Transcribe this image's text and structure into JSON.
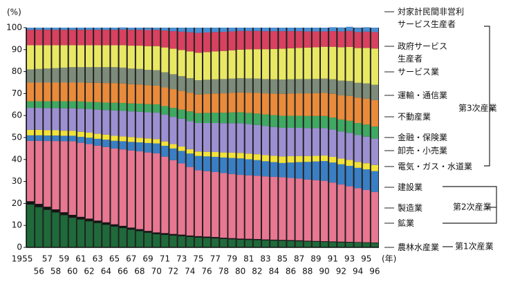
{
  "chart_data": {
    "type": "stacked-bar",
    "y_unit": "(%)",
    "x_unit": "(年)",
    "categories": [
      "1955",
      "56",
      "57",
      "58",
      "59",
      "60",
      "61",
      "62",
      "63",
      "64",
      "65",
      "66",
      "67",
      "68",
      "69",
      "70",
      "71",
      "72",
      "73",
      "74",
      "75",
      "76",
      "77",
      "78",
      "79",
      "80",
      "81",
      "82",
      "83",
      "84",
      "85",
      "86",
      "87",
      "88",
      "89",
      "90",
      "91",
      "92",
      "93",
      "94",
      "95",
      "96"
    ],
    "ylim": [
      0,
      100
    ],
    "yticks": [
      0,
      10,
      20,
      30,
      40,
      50,
      60,
      70,
      80,
      90,
      100
    ],
    "series": [
      {
        "name": "農林水産業",
        "color": "#1f6a3a",
        "values": [
          19.5,
          18.3,
          17.1,
          15.9,
          14.7,
          13.5,
          12.7,
          11.9,
          11.1,
          10.3,
          9.5,
          8.8,
          8.1,
          7.4,
          6.7,
          6.0,
          5.7,
          5.4,
          5.1,
          4.8,
          4.5,
          4.3,
          4.1,
          3.9,
          3.7,
          3.5,
          3.4,
          3.3,
          3.2,
          3.1,
          3.0,
          2.9,
          2.8,
          2.7,
          2.6,
          2.5,
          2.4,
          2.3,
          2.2,
          2.2,
          2.1,
          2.0
        ]
      },
      {
        "name": "鉱業",
        "color": "#151515",
        "values": [
          1.5,
          1.5,
          1.4,
          1.4,
          1.3,
          1.3,
          1.2,
          1.2,
          1.1,
          1.1,
          1.0,
          1.0,
          0.9,
          0.9,
          0.8,
          0.8,
          0.8,
          0.7,
          0.7,
          0.6,
          0.6,
          0.6,
          0.6,
          0.5,
          0.5,
          0.5,
          0.5,
          0.5,
          0.4,
          0.4,
          0.4,
          0.4,
          0.4,
          0.3,
          0.3,
          0.3,
          0.3,
          0.3,
          0.3,
          0.2,
          0.2,
          0.2
        ]
      },
      {
        "name": "製造業",
        "color": "#e87791",
        "values": [
          27.5,
          28.7,
          29.9,
          31.1,
          32.3,
          33.5,
          33.7,
          33.9,
          34.1,
          34.3,
          34.5,
          34.8,
          35.1,
          35.4,
          35.7,
          36.0,
          34.8,
          33.6,
          32.4,
          31.2,
          30.0,
          29.8,
          29.6,
          29.4,
          29.2,
          29.0,
          28.9,
          28.8,
          28.7,
          28.6,
          28.5,
          28.3,
          28.1,
          27.9,
          27.7,
          27.5,
          26.8,
          26.0,
          25.3,
          24.5,
          23.8,
          23.0
        ]
      },
      {
        "name": "建設業",
        "color": "#3a7fc4",
        "values": [
          2.5,
          2.5,
          2.5,
          2.5,
          2.5,
          2.5,
          2.7,
          2.9,
          3.1,
          3.3,
          3.5,
          3.7,
          3.9,
          4.1,
          4.3,
          4.5,
          4.9,
          5.3,
          5.7,
          6.1,
          6.5,
          6.7,
          6.9,
          7.1,
          7.3,
          7.5,
          7.3,
          7.1,
          6.9,
          6.7,
          6.5,
          7.0,
          7.5,
          8.0,
          8.5,
          9.0,
          9.1,
          9.2,
          9.3,
          9.3,
          9.4,
          9.5
        ]
      },
      {
        "name": "電気・ガス・水道業",
        "color": "#f2e23a",
        "values": [
          2.5,
          2.5,
          2.4,
          2.4,
          2.3,
          2.3,
          2.3,
          2.3,
          2.3,
          2.3,
          2.3,
          2.2,
          2.2,
          2.1,
          2.1,
          2.0,
          2.0,
          2.0,
          2.0,
          2.0,
          2.0,
          2.1,
          2.2,
          2.3,
          2.4,
          2.5,
          2.6,
          2.7,
          2.8,
          2.9,
          3.0,
          2.9,
          2.8,
          2.7,
          2.6,
          2.5,
          2.6,
          2.6,
          2.7,
          2.7,
          2.8,
          2.8
        ]
      },
      {
        "name": "卸売・小売業",
        "color": "#9c90d2",
        "values": [
          10.0,
          10.0,
          10.1,
          10.1,
          10.2,
          10.2,
          10.5,
          10.7,
          11.0,
          11.2,
          11.5,
          11.6,
          11.7,
          11.8,
          11.9,
          12.0,
          12.2,
          12.4,
          12.6,
          12.8,
          13.0,
          13.1,
          13.2,
          13.3,
          13.4,
          13.5,
          13.4,
          13.3,
          13.2,
          13.1,
          13.0,
          12.9,
          12.8,
          12.7,
          12.6,
          12.5,
          12.4,
          12.3,
          12.3,
          12.2,
          12.1,
          12.0
        ]
      },
      {
        "name": "金融・保険業",
        "color": "#3fa862",
        "values": [
          3.0,
          3.0,
          3.1,
          3.1,
          3.2,
          3.2,
          3.3,
          3.3,
          3.4,
          3.4,
          3.5,
          3.6,
          3.6,
          3.7,
          3.7,
          3.8,
          3.9,
          4.1,
          4.2,
          4.4,
          4.5,
          4.6,
          4.7,
          4.8,
          4.9,
          5.0,
          5.1,
          5.2,
          5.3,
          5.4,
          5.5,
          5.5,
          5.5,
          5.5,
          5.5,
          5.5,
          5.5,
          5.5,
          5.5,
          5.5,
          5.5,
          5.5
        ]
      },
      {
        "name": "不動産業",
        "color": "#e98b3b",
        "values": [
          8.5,
          8.5,
          8.5,
          8.5,
          8.5,
          8.5,
          8.6,
          8.7,
          8.8,
          8.9,
          9.0,
          8.9,
          8.8,
          8.7,
          8.6,
          8.5,
          8.5,
          8.5,
          8.5,
          8.5,
          8.5,
          8.6,
          8.7,
          8.8,
          8.9,
          9.0,
          9.2,
          9.4,
          9.6,
          9.8,
          10.0,
          10.1,
          10.2,
          10.3,
          10.4,
          10.5,
          10.8,
          11.0,
          11.3,
          11.5,
          11.8,
          12.0
        ]
      },
      {
        "name": "運輸・通信業",
        "color": "#7d8c7a",
        "values": [
          6.0,
          6.2,
          6.4,
          6.6,
          6.8,
          7.0,
          7.0,
          7.1,
          7.1,
          7.2,
          7.2,
          7.2,
          7.1,
          7.1,
          7.0,
          7.0,
          6.9,
          6.8,
          6.7,
          6.6,
          6.5,
          6.5,
          6.5,
          6.5,
          6.5,
          6.5,
          6.5,
          6.5,
          6.5,
          6.5,
          6.5,
          6.5,
          6.5,
          6.5,
          6.5,
          6.5,
          6.6,
          6.7,
          6.8,
          6.8,
          6.9,
          7.0
        ]
      },
      {
        "name": "サービス業",
        "color": "#e9e864",
        "values": [
          11.0,
          10.8,
          10.6,
          10.4,
          10.2,
          10.0,
          10.0,
          10.0,
          10.0,
          10.0,
          10.0,
          10.2,
          10.4,
          10.6,
          10.8,
          11.0,
          11.3,
          11.6,
          11.9,
          12.2,
          12.5,
          12.6,
          12.7,
          12.8,
          12.9,
          13.0,
          13.2,
          13.4,
          13.6,
          13.8,
          14.0,
          14.1,
          14.2,
          14.3,
          14.4,
          14.5,
          14.8,
          15.2,
          15.5,
          15.8,
          16.2,
          16.5
        ]
      },
      {
        "name": "政府サービス\n生産者",
        "color": "#d8415f",
        "values": [
          7.0,
          7.0,
          7.0,
          7.0,
          7.0,
          7.0,
          7.0,
          7.0,
          7.0,
          7.0,
          7.0,
          7.1,
          7.2,
          7.2,
          7.3,
          7.4,
          7.7,
          8.0,
          8.4,
          8.7,
          9.0,
          8.9,
          8.8,
          8.7,
          8.6,
          8.5,
          8.4,
          8.3,
          8.2,
          8.1,
          8.0,
          7.8,
          7.6,
          7.4,
          7.2,
          7.0,
          7.1,
          7.2,
          7.3,
          7.3,
          7.4,
          7.5
        ]
      },
      {
        "name": "対家計民間非営利\nサービス生産者",
        "color": "#4a8fd2",
        "values": [
          1.0,
          1.0,
          1.0,
          1.0,
          1.0,
          1.0,
          1.0,
          1.0,
          1.0,
          1.0,
          1.0,
          1.0,
          1.0,
          1.0,
          1.0,
          1.0,
          1.3,
          1.6,
          1.8,
          2.1,
          2.4,
          2.2,
          2.0,
          1.9,
          1.7,
          1.5,
          1.5,
          1.5,
          1.6,
          1.6,
          1.6,
          1.6,
          1.6,
          1.7,
          1.7,
          1.7,
          1.8,
          1.8,
          1.9,
          1.9,
          2.0,
          2.0
        ]
      }
    ],
    "groups": [
      "第3次産業",
      "第2次産業",
      "第1次産業"
    ]
  }
}
